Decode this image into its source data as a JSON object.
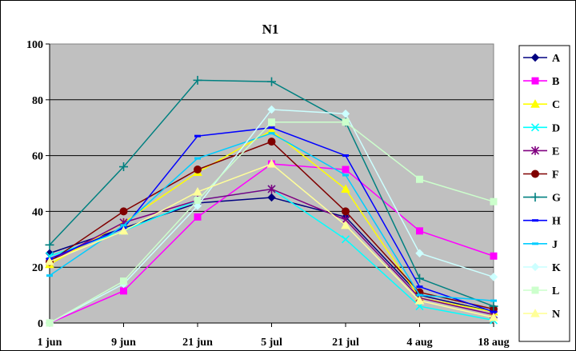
{
  "chart_data": {
    "type": "line",
    "title": "N1",
    "xlabel": "",
    "ylabel": "",
    "x": [
      "1 jun",
      "9 jun",
      "21 jun",
      "5 jul",
      "21 jul",
      "4 aug",
      "18 aug"
    ],
    "ylim": [
      0,
      100
    ],
    "yticks": [
      "0",
      "20",
      "40",
      "60",
      "80",
      "100"
    ],
    "grid": true,
    "plot_background": "#c0c0c0",
    "legend_position": "right",
    "series": [
      {
        "name": "A",
        "color": "#000080",
        "marker": "diamond",
        "values": [
          25,
          34,
          43,
          45,
          38,
          10,
          4
        ]
      },
      {
        "name": "B",
        "color": "#ff00ff",
        "marker": "square",
        "values": [
          0,
          11.5,
          38,
          57,
          55,
          33,
          24
        ]
      },
      {
        "name": "C",
        "color": "#ffff00",
        "marker": "triangle",
        "values": [
          21,
          36,
          54,
          69,
          48,
          9,
          4
        ]
      },
      {
        "name": "D",
        "color": "#00ffff",
        "marker": "x",
        "values": [
          24,
          33,
          44,
          48,
          30,
          6,
          1
        ]
      },
      {
        "name": "E",
        "color": "#800080",
        "marker": "asterisk",
        "values": [
          22,
          36,
          44,
          48,
          37,
          9,
          3
        ]
      },
      {
        "name": "F",
        "color": "#800000",
        "marker": "circle",
        "values": [
          22,
          40,
          55,
          65,
          40,
          11,
          5
        ]
      },
      {
        "name": "G",
        "color": "#008080",
        "marker": "plus",
        "values": [
          28,
          56,
          87,
          86.5,
          72,
          16,
          6
        ]
      },
      {
        "name": "H",
        "color": "#0000ff",
        "marker": "dash",
        "values": [
          23,
          34,
          67,
          70,
          60,
          13,
          4
        ]
      },
      {
        "name": "J",
        "color": "#00ccff",
        "marker": "dash",
        "values": [
          17,
          35,
          59,
          68,
          53,
          10,
          8
        ]
      },
      {
        "name": "K",
        "color": "#ccffff",
        "marker": "diamond",
        "values": [
          0,
          14,
          42,
          76.5,
          75,
          25,
          16.5
        ]
      },
      {
        "name": "L",
        "color": "#ccffcc",
        "marker": "square",
        "values": [
          0,
          15,
          44,
          72,
          72,
          51.5,
          43.5
        ]
      },
      {
        "name": "N",
        "color": "#ffff99",
        "marker": "triangle",
        "values": [
          22,
          33,
          47,
          57,
          35,
          8,
          2
        ]
      }
    ]
  }
}
